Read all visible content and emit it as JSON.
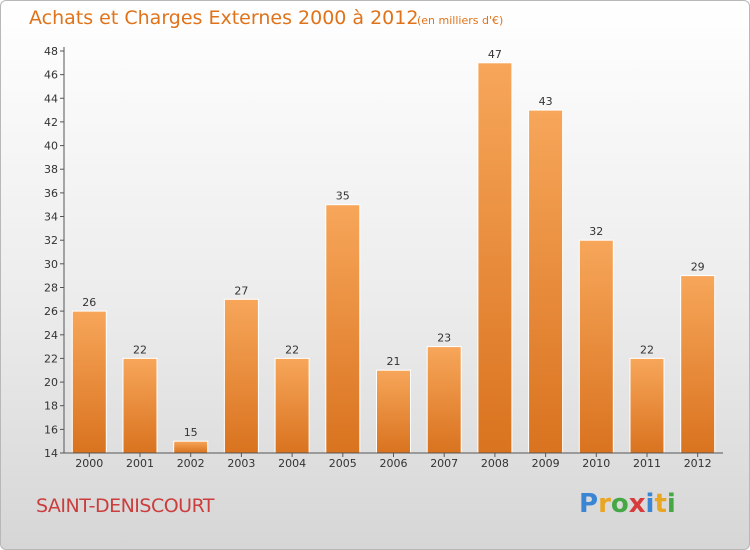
{
  "header": {
    "title": "Achats et Charges Externes 2000 à 2012",
    "subtitle": "(en milliers d'€)"
  },
  "footer": {
    "commune": "SAINT-DENISCOURT",
    "logo_text": "Proxiti"
  },
  "colors": {
    "accent": "#e0731a",
    "commune": "#cc3d3d",
    "bar_light": "#f7a65a",
    "bar_dark": "#d9731f"
  },
  "chart_data": {
    "type": "bar",
    "title": "Achats et Charges Externes 2000 à 2012",
    "subtitle": "(en milliers d'€)",
    "xlabel": "",
    "ylabel": "",
    "categories": [
      "2000",
      "2001",
      "2002",
      "2003",
      "2004",
      "2005",
      "2006",
      "2007",
      "2008",
      "2009",
      "2010",
      "2011",
      "2012"
    ],
    "values": [
      26,
      22,
      15,
      27,
      22,
      35,
      21,
      23,
      47,
      43,
      32,
      22,
      29
    ],
    "ylim": [
      14,
      48
    ],
    "ytick_step": 2,
    "grid": false,
    "legend": "none",
    "data_labels": true
  }
}
